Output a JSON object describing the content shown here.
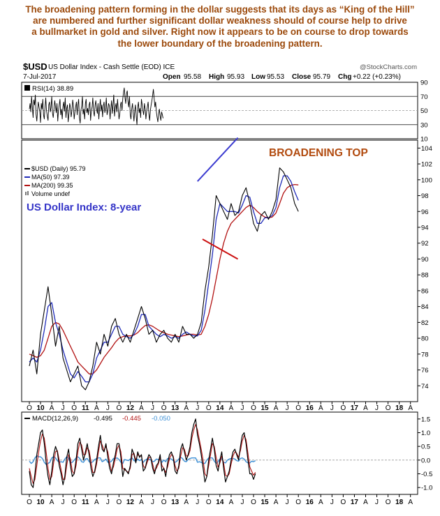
{
  "caption": {
    "lines": [
      "The broadening pattern forming in the dollar suggests that its days as “King of the Hill”",
      "are numbered and further significant dollar weakness should of course help to drive",
      "a bullmarket in gold and silver. Right now it appears to be on course to drop towards",
      "the lower boundary of the broadening pattern."
    ]
  },
  "header": {
    "symbol": "$USD",
    "name": "US Dollar Index - Cash Settle (EOD) ICE",
    "watermark": "@StockCharts.com",
    "date": "7-Jul-2017",
    "open_label": "Open",
    "open": "95.58",
    "high_label": "High",
    "high": "95.93",
    "low_label": "Low",
    "low": "95.53",
    "close_label": "Close",
    "close": "95.79",
    "chg_label": "Chg",
    "chg": "+0.22 (+0.23%)"
  },
  "colors": {
    "price": "#000000",
    "ma50": "#1f2bb8",
    "ma200": "#b21212",
    "trend_upper": "#3b3bd0",
    "trend_lower": "#cc1010",
    "annotation_title": "#b24b0f",
    "annotation_label": "#3535c8",
    "macd": "#000000",
    "signal": "#b21212",
    "histogram": "#3b8fd6"
  },
  "chart_data": [
    {
      "type": "line",
      "panel": "RSI",
      "legend": "RSI(14) 38.89",
      "ylim": [
        10,
        90
      ],
      "y_ticks": [
        90,
        70,
        50,
        30,
        10
      ],
      "reference_lines": [
        70,
        30
      ],
      "last_value": 38.89,
      "samples_per_quarter": 15,
      "values": [
        52,
        60,
        48,
        70,
        55,
        40,
        65,
        58,
        72,
        45,
        35,
        50,
        62,
        55,
        48,
        33,
        60,
        52,
        66,
        44,
        38,
        55,
        68,
        50,
        42,
        36,
        58,
        62,
        48,
        54,
        70,
        46,
        40,
        52,
        64,
        55,
        47,
        60,
        35,
        50,
        58,
        66,
        44,
        52,
        38,
        56,
        62,
        49,
        68,
        40,
        53,
        58,
        34,
        45,
        60,
        55,
        41,
        50,
        65,
        57,
        38,
        48,
        55,
        62,
        44,
        58,
        66,
        40,
        32,
        50,
        56,
        70,
        45,
        52,
        38,
        60,
        66,
        47,
        53,
        44,
        58,
        62,
        36,
        50,
        55,
        68,
        48,
        42,
        58,
        64,
        52,
        46,
        60,
        38,
        54,
        66,
        49,
        58,
        41,
        56,
        62,
        47,
        53,
        68,
        44,
        50,
        60,
        57,
        38,
        52,
        64,
        46,
        58,
        72,
        42,
        55,
        60,
        48,
        66,
        52,
        38,
        45,
        58,
        62,
        50,
        67,
        75,
        82,
        68,
        60,
        74,
        78,
        63,
        55,
        70,
        44,
        38,
        52,
        60,
        48,
        35,
        50,
        58,
        42,
        30,
        55,
        62,
        47,
        53,
        40,
        66,
        58,
        50,
        44,
        60,
        52,
        38,
        49,
        56,
        62,
        45,
        36,
        50,
        58,
        64,
        72,
        80,
        68,
        55,
        62,
        48,
        40,
        34,
        45,
        52,
        42,
        36,
        48,
        44,
        39
      ],
      "raw_note": ""
    },
    {
      "type": "line",
      "panel": "Price",
      "legend": [
        "$USD (Daily) 95.79",
        "MA(50) 97.39",
        "MA(200) 99.35",
        "Volume undef"
      ],
      "title": "US Dollar Index: 8-year",
      "annotation": "BROADENING TOP",
      "ylim": [
        72,
        105
      ],
      "y_ticks": [
        104,
        102,
        100,
        98,
        96,
        94,
        92,
        90,
        88,
        86,
        84,
        82,
        80,
        78,
        76,
        74
      ],
      "x_ticks": [
        "O",
        "10",
        "A",
        "J",
        "O",
        "11",
        "A",
        "J",
        "O",
        "12",
        "A",
        "J",
        "O",
        "13",
        "A",
        "J",
        "O",
        "14",
        "A",
        "J",
        "O",
        "15",
        "A",
        "J",
        "O",
        "16",
        "A",
        "J",
        "O",
        "17",
        "A",
        "J",
        "O",
        "18",
        "A"
      ],
      "samples_per_quarter": 3,
      "series": [
        {
          "name": "$USD (Daily)",
          "values": [
            76.5,
            78.5,
            75.5,
            80.5,
            83.5,
            86.5,
            83.0,
            79.0,
            81.5,
            77.5,
            76.0,
            74.5,
            75.5,
            76.5,
            74.0,
            73.5,
            74.5,
            76.5,
            79.5,
            78.0,
            80.5,
            79.0,
            81.5,
            82.5,
            80.5,
            79.5,
            80.5,
            79.5,
            81.0,
            82.5,
            84.0,
            82.5,
            80.5,
            81.0,
            79.5,
            80.5,
            81.0,
            80.0,
            79.5,
            80.5,
            79.5,
            81.5,
            80.5,
            80.5,
            80.0,
            80.5,
            82.0,
            86.0,
            89.0,
            93.0,
            98.0,
            97.0,
            96.0,
            95.0,
            97.0,
            95.5,
            96.0,
            98.0,
            99.0,
            97.0,
            94.5,
            93.5,
            95.5,
            96.0,
            95.0,
            96.0,
            97.5,
            101.5,
            101.0,
            100.0,
            99.0,
            97.0,
            96.0
          ]
        },
        {
          "name": "MA(50)",
          "values": [
            77.0,
            77.5,
            77.0,
            78.5,
            81.0,
            84.0,
            84.5,
            82.0,
            80.5,
            78.5,
            77.0,
            75.5,
            75.0,
            75.8,
            75.2,
            74.5,
            74.5,
            75.5,
            77.5,
            78.5,
            79.5,
            79.5,
            80.5,
            81.5,
            81.5,
            80.5,
            80.2,
            80.0,
            80.5,
            81.5,
            83.0,
            83.0,
            81.5,
            81.0,
            80.5,
            80.2,
            80.5,
            80.3,
            80.0,
            80.2,
            80.0,
            80.5,
            80.8,
            80.5,
            80.3,
            80.3,
            81.0,
            83.5,
            87.0,
            90.5,
            95.0,
            97.0,
            96.5,
            96.0,
            96.0,
            96.0,
            95.8,
            96.8,
            98.0,
            97.8,
            96.0,
            94.5,
            94.5,
            95.2,
            95.2,
            95.5,
            96.5,
            99.0,
            100.5,
            100.5,
            99.8,
            98.5,
            97.4
          ]
        },
        {
          "name": "MA(200)",
          "values": [
            78.0,
            77.8,
            77.6,
            77.8,
            78.5,
            80.0,
            81.5,
            82.0,
            81.8,
            81.0,
            80.0,
            79.0,
            78.0,
            77.0,
            76.5,
            76.0,
            75.5,
            75.5,
            76.0,
            76.8,
            77.6,
            78.2,
            78.8,
            79.5,
            80.0,
            80.2,
            80.3,
            80.3,
            80.4,
            80.7,
            81.2,
            81.6,
            81.7,
            81.5,
            81.2,
            80.9,
            80.7,
            80.5,
            80.4,
            80.3,
            80.2,
            80.3,
            80.4,
            80.5,
            80.5,
            80.4,
            80.5,
            81.5,
            83.0,
            85.0,
            87.5,
            90.0,
            92.0,
            93.5,
            94.5,
            95.0,
            95.5,
            96.0,
            96.5,
            96.8,
            96.5,
            96.0,
            95.6,
            95.3,
            95.2,
            95.3,
            95.8,
            97.0,
            98.3,
            99.0,
            99.3,
            99.4,
            99.35
          ]
        }
      ],
      "trendlines": [
        {
          "name": "upper",
          "x": [
            15.0,
            18.6
          ],
          "y": [
            99.8,
            105.3
          ]
        },
        {
          "name": "lower",
          "x": [
            15.45,
            18.6
          ],
          "y": [
            92.5,
            90.0
          ]
        }
      ]
    },
    {
      "type": "line",
      "panel": "MACD",
      "legend": [
        "MACD(12,26,9)",
        "-0.495",
        "-0.445",
        "-0.050"
      ],
      "ylim": [
        -1.25,
        1.75
      ],
      "y_ticks": [
        1.5,
        1.0,
        0.5,
        0.0,
        -0.5,
        -1.0
      ],
      "x_ticks": [
        "O",
        "10",
        "A",
        "J",
        "O",
        "11",
        "A",
        "J",
        "O",
        "12",
        "A",
        "J",
        "O",
        "13",
        "A",
        "J",
        "O",
        "14",
        "A",
        "J",
        "O",
        "15",
        "A",
        "J",
        "O",
        "16",
        "A",
        "J",
        "O",
        "17",
        "A",
        "J",
        "O",
        "18",
        "A"
      ],
      "samples_per_quarter": 6,
      "series": [
        {
          "name": "MACD",
          "values": [
            -0.4,
            -0.9,
            -1.0,
            -0.5,
            0.2,
            0.6,
            1.0,
            1.1,
            0.6,
            -0.1,
            -0.6,
            -0.9,
            -0.4,
            0.2,
            0.5,
            0.3,
            -0.2,
            -0.5,
            -0.9,
            -0.6,
            0.1,
            0.4,
            -0.2,
            -0.6,
            -0.5,
            0.0,
            0.6,
            0.8,
            0.4,
            0.0,
            0.3,
            0.6,
            0.2,
            -0.3,
            -0.6,
            -0.4,
            0.0,
            0.5,
            0.9,
            0.4,
            0.3,
            0.6,
            0.1,
            -0.3,
            -0.5,
            -0.1,
            0.2,
            0.6,
            0.6,
            0.1,
            -0.6,
            -0.3,
            -0.4,
            -0.5,
            -0.2,
            0.4,
            0.2,
            -0.1,
            0.3,
            0.1,
            0.2,
            -0.4,
            -0.3,
            0.0,
            0.2,
            0.1,
            -0.3,
            -0.5,
            -0.2,
            -0.1,
            0.2,
            -0.4,
            -0.3,
            -0.6,
            -0.1,
            0.2,
            0.3,
            0.1,
            -0.4,
            -0.5,
            -0.2,
            0.4,
            0.6,
            0.3,
            0.0,
            0.2,
            0.5,
            1.0,
            1.3,
            1.5,
            0.9,
            0.6,
            0.2,
            -0.3,
            -0.8,
            -0.6,
            0.0,
            0.4,
            0.8,
            0.4,
            -0.2,
            -0.4,
            0.0,
            0.3,
            -0.3,
            -0.8,
            -0.6,
            -0.4,
            0.0,
            0.3,
            0.4,
            0.2,
            0.0,
            0.5,
            0.9,
            1.0,
            0.6,
            0.0,
            -0.5,
            -0.5,
            -0.7,
            -0.495
          ]
        },
        {
          "name": "Signal",
          "values": [
            -0.3,
            -0.6,
            -0.85,
            -0.7,
            -0.2,
            0.3,
            0.7,
            0.95,
            0.8,
            0.3,
            -0.3,
            -0.7,
            -0.6,
            -0.1,
            0.3,
            0.35,
            0.0,
            -0.35,
            -0.7,
            -0.7,
            -0.2,
            0.2,
            0.05,
            -0.4,
            -0.5,
            -0.2,
            0.3,
            0.65,
            0.55,
            0.2,
            0.2,
            0.45,
            0.35,
            -0.05,
            -0.45,
            -0.45,
            -0.15,
            0.3,
            0.7,
            0.55,
            0.35,
            0.5,
            0.3,
            -0.1,
            -0.4,
            -0.25,
            0.05,
            0.4,
            0.55,
            0.3,
            -0.3,
            -0.35,
            -0.4,
            -0.45,
            -0.3,
            0.2,
            0.25,
            0.0,
            0.2,
            0.15,
            0.15,
            -0.2,
            -0.3,
            -0.1,
            0.1,
            0.1,
            -0.15,
            -0.4,
            -0.3,
            -0.15,
            0.1,
            -0.2,
            -0.3,
            -0.45,
            -0.25,
            0.05,
            0.2,
            0.15,
            -0.2,
            -0.4,
            -0.3,
            0.15,
            0.45,
            0.4,
            0.15,
            0.15,
            0.35,
            0.8,
            1.1,
            1.3,
            1.1,
            0.75,
            0.4,
            0.0,
            -0.5,
            -0.6,
            -0.2,
            0.2,
            0.6,
            0.5,
            0.1,
            -0.25,
            -0.1,
            0.15,
            -0.1,
            -0.55,
            -0.6,
            -0.5,
            -0.15,
            0.15,
            0.3,
            0.25,
            0.1,
            0.35,
            0.7,
            0.9,
            0.75,
            0.25,
            -0.25,
            -0.4,
            -0.55,
            -0.445
          ]
        }
      ]
    }
  ]
}
